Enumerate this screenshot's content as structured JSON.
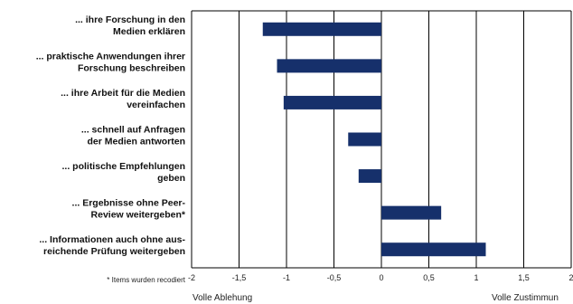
{
  "chart_data": {
    "type": "bar",
    "orientation": "horizontal",
    "categories": [
      [
        "... ihre Forschung in den",
        "Medien erklären"
      ],
      [
        "... praktische Anwendungen ihrer",
        "Forschung beschreiben"
      ],
      [
        "... ihre Arbeit für die Medien",
        "vereinfachen"
      ],
      [
        "... schnell auf Anfragen",
        "der Medien antworten"
      ],
      [
        "... politische Empfehlungen",
        "geben"
      ],
      [
        "... Ergebnisse ohne Peer-",
        "Review weitergeben*"
      ],
      [
        "... Informationen auch ohne aus-",
        "reichende Prüfung weitergeben"
      ]
    ],
    "values": [
      -1.25,
      -1.1,
      -1.03,
      -0.35,
      -0.24,
      0.63,
      1.1
    ],
    "xlim": [
      -2,
      2
    ],
    "xticks": [
      -2,
      -1.5,
      -1,
      -0.5,
      0,
      0.5,
      1,
      1.5,
      2
    ],
    "xtick_labels": [
      "-2",
      "-1,5",
      "-1",
      "-0,5",
      "0",
      "0,5",
      "1",
      "1,5",
      "2"
    ],
    "x_min_label": "Volle Ablehung",
    "x_max_label": "Volle Zustimmun",
    "footnote": "* Items wurden recodiert",
    "bar_color": "#16306b",
    "grid": "vertical"
  }
}
